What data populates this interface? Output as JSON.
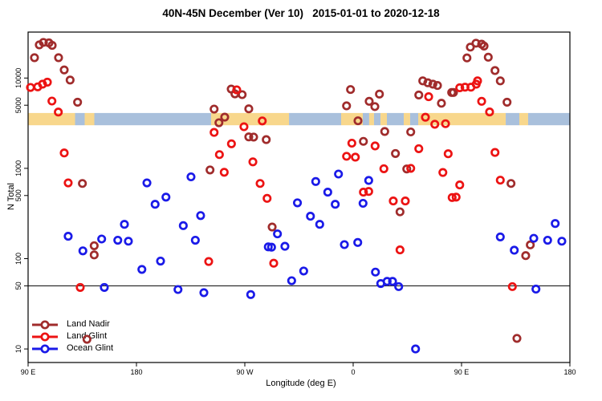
{
  "title": "40N-45N December (Ver 10)   2015-01-01 to 2020-12-18",
  "y_axis_label": "N Total",
  "x_axis_label": "Longitude (deg E)",
  "legend": {
    "items": [
      {
        "label": "Land Nadir",
        "color": "#A02C2C"
      },
      {
        "label": "Land Glint",
        "color": "#EC1313"
      },
      {
        "label": "Ocean Glint",
        "color": "#1A1AE8"
      }
    ]
  },
  "chart_data": {
    "type": "scatter",
    "title": "40N-45N December (Ver 10)   2015-01-01 to 2020-12-18",
    "xlabel": "Longitude (deg E)",
    "ylabel": "N Total",
    "x_axis": {
      "unit": "deg E, wrapping",
      "range_deg": [
        90,
        540
      ],
      "ticks": [
        {
          "lon": 90,
          "label": "90 E"
        },
        {
          "lon": 180,
          "label": "180"
        },
        {
          "lon": 270,
          "label": "90 W"
        },
        {
          "lon": 360,
          "label": "0"
        },
        {
          "lon": 450,
          "label": "90 E"
        },
        {
          "lon": 540,
          "label": "180"
        }
      ]
    },
    "y_axis": {
      "scale": "log10",
      "range": [
        7,
        32000
      ],
      "ticks": [
        {
          "v": 10,
          "label": "10"
        },
        {
          "v": 50,
          "label": "50"
        },
        {
          "v": 100,
          "label": "100"
        },
        {
          "v": 500,
          "label": "500"
        },
        {
          "v": 1000,
          "label": "1000"
        },
        {
          "v": 5000,
          "label": "5000"
        },
        {
          "v": 10000,
          "label": "10000"
        }
      ]
    },
    "grid": "off",
    "legend_position": "bottom-left",
    "reference_line_value": 50,
    "map_strip": {
      "description": "land/ocean mask band for 40N-45N latitude",
      "value_top": 4100,
      "value_bottom": 3000,
      "land_color": "#F8D78C",
      "ocean_color": "#A9C0DC",
      "segments": [
        {
          "from": 90,
          "to": 129,
          "type": "land"
        },
        {
          "from": 129,
          "to": 137,
          "type": "ocean"
        },
        {
          "from": 137,
          "to": 145,
          "type": "land"
        },
        {
          "from": 145,
          "to": 242,
          "type": "ocean"
        },
        {
          "from": 242,
          "to": 306.7,
          "type": "land"
        },
        {
          "from": 306.7,
          "to": 350,
          "type": "ocean"
        },
        {
          "from": 350,
          "to": 368,
          "type": "land"
        },
        {
          "from": 368,
          "to": 373.3,
          "type": "ocean"
        },
        {
          "from": 373.3,
          "to": 377.3,
          "type": "land"
        },
        {
          "from": 377.3,
          "to": 382.7,
          "type": "ocean"
        },
        {
          "from": 382.7,
          "to": 388,
          "type": "land"
        },
        {
          "from": 388,
          "to": 402,
          "type": "ocean"
        },
        {
          "from": 402,
          "to": 407.3,
          "type": "land"
        },
        {
          "from": 407.3,
          "to": 414,
          "type": "ocean"
        },
        {
          "from": 414,
          "to": 486.7,
          "type": "land"
        },
        {
          "from": 486.7,
          "to": 498,
          "type": "ocean"
        },
        {
          "from": 498,
          "to": 505.3,
          "type": "land"
        },
        {
          "from": 505.3,
          "to": 540,
          "type": "ocean"
        }
      ]
    },
    "series": [
      {
        "name": "Land Nadir",
        "color": "#A02C2C",
        "points": [
          [
            99.3,
            23300
          ],
          [
            102.7,
            24800
          ],
          [
            107.3,
            24500
          ],
          [
            110,
            23000
          ],
          [
            95.3,
            16800
          ],
          [
            115.3,
            16800
          ],
          [
            120,
            12300
          ],
          [
            124.9,
            9500
          ],
          [
            131.1,
            5400
          ],
          [
            135.1,
            680
          ],
          [
            144.9,
            139
          ],
          [
            144.9,
            110
          ],
          [
            138.9,
            12.8
          ],
          [
            241.1,
            960
          ],
          [
            244.5,
            4530
          ],
          [
            248.5,
            3200
          ],
          [
            253.3,
            3690
          ],
          [
            258.7,
            7550
          ],
          [
            261.8,
            6680
          ],
          [
            267.8,
            6550
          ],
          [
            273.3,
            4560
          ],
          [
            273.3,
            2230
          ],
          [
            277.3,
            2220
          ],
          [
            287.8,
            2080
          ],
          [
            292.7,
            224
          ],
          [
            354.5,
            4920
          ],
          [
            357.8,
            7460
          ],
          [
            364,
            3360
          ],
          [
            368.5,
            1990
          ],
          [
            373.3,
            5520
          ],
          [
            378,
            4830
          ],
          [
            381.8,
            6640
          ],
          [
            386.2,
            2560
          ],
          [
            395.1,
            1460
          ],
          [
            398.9,
            330
          ],
          [
            404.5,
            985
          ],
          [
            407.8,
            2530
          ],
          [
            414.5,
            6490
          ],
          [
            417.8,
            9300
          ],
          [
            422,
            8860
          ],
          [
            426.2,
            8550
          ],
          [
            430,
            8270
          ],
          [
            433.3,
            5260
          ],
          [
            441.8,
            6920
          ],
          [
            443.3,
            6920
          ],
          [
            454.5,
            16700
          ],
          [
            457.3,
            22000
          ],
          [
            462,
            24300
          ],
          [
            466.7,
            23700
          ],
          [
            468.7,
            22600
          ],
          [
            472.2,
            17000
          ],
          [
            477.8,
            12100
          ],
          [
            482.2,
            9300
          ],
          [
            487.8,
            5400
          ],
          [
            491.1,
            680
          ],
          [
            496,
            13.1
          ],
          [
            503.3,
            108
          ],
          [
            507.1,
            142
          ]
        ]
      },
      {
        "name": "Land Glint",
        "color": "#EC1313",
        "points": [
          [
            92,
            7870
          ],
          [
            98,
            7990
          ],
          [
            102,
            8550
          ],
          [
            106,
            9000
          ],
          [
            109.8,
            5560
          ],
          [
            115.1,
            4200
          ],
          [
            120,
            1480
          ],
          [
            123.3,
            690
          ],
          [
            133.3,
            48
          ],
          [
            240,
            93
          ],
          [
            244.5,
            2500
          ],
          [
            248.9,
            1420
          ],
          [
            252.9,
            905
          ],
          [
            258.9,
            1870
          ],
          [
            263.3,
            7400
          ],
          [
            269.3,
            2890
          ],
          [
            276.7,
            1180
          ],
          [
            282.7,
            680
          ],
          [
            284.5,
            3350
          ],
          [
            288.5,
            465
          ],
          [
            294,
            89
          ],
          [
            354.5,
            1360
          ],
          [
            358.9,
            1900
          ],
          [
            361.8,
            1330
          ],
          [
            368.5,
            545
          ],
          [
            372.9,
            555
          ],
          [
            378.2,
            1770
          ],
          [
            385.5,
            990
          ],
          [
            393.3,
            435
          ],
          [
            398.9,
            125
          ],
          [
            403.3,
            435
          ],
          [
            407.8,
            1000
          ],
          [
            414.5,
            1650
          ],
          [
            420,
            3680
          ],
          [
            422.7,
            6210
          ],
          [
            427.8,
            3080
          ],
          [
            434.5,
            900
          ],
          [
            436.7,
            3120
          ],
          [
            438.9,
            1450
          ],
          [
            442.2,
            475
          ],
          [
            445.5,
            480
          ],
          [
            448.5,
            7800
          ],
          [
            448.5,
            655
          ],
          [
            452.9,
            7920
          ],
          [
            457.8,
            7920
          ],
          [
            462.2,
            8550
          ],
          [
            463.3,
            9300
          ],
          [
            466.7,
            5520
          ],
          [
            473.3,
            4210
          ],
          [
            477.8,
            1500
          ],
          [
            482.2,
            740
          ],
          [
            492.2,
            49
          ]
        ]
      },
      {
        "name": "Ocean Glint",
        "color": "#1A1AE8",
        "points": [
          [
            123.3,
            177
          ],
          [
            135.5,
            122
          ],
          [
            151.1,
            165
          ],
          [
            153.3,
            48
          ],
          [
            164.5,
            160
          ],
          [
            170,
            240
          ],
          [
            173.3,
            156
          ],
          [
            184.5,
            76
          ],
          [
            188.7,
            690
          ],
          [
            195.5,
            400
          ],
          [
            200,
            94
          ],
          [
            204.5,
            480
          ],
          [
            214.5,
            45.5
          ],
          [
            218.9,
            232
          ],
          [
            225.3,
            805
          ],
          [
            228.9,
            160
          ],
          [
            233.3,
            300
          ],
          [
            236,
            42
          ],
          [
            274.9,
            40
          ],
          [
            289.5,
            135
          ],
          [
            292.2,
            134
          ],
          [
            297.1,
            188
          ],
          [
            303.3,
            137
          ],
          [
            308.9,
            57
          ],
          [
            313.7,
            415
          ],
          [
            318.9,
            73
          ],
          [
            324.5,
            295
          ],
          [
            328.9,
            715
          ],
          [
            332.2,
            240
          ],
          [
            338.9,
            545
          ],
          [
            345.1,
            400
          ],
          [
            347.8,
            865
          ],
          [
            352.7,
            143
          ],
          [
            363.8,
            151
          ],
          [
            368.2,
            410
          ],
          [
            372.9,
            735
          ],
          [
            378.5,
            71
          ],
          [
            382.9,
            53
          ],
          [
            388.2,
            56
          ],
          [
            392.7,
            56
          ],
          [
            397.8,
            49
          ],
          [
            411.8,
            10
          ],
          [
            482.2,
            174
          ],
          [
            493.8,
            124
          ],
          [
            510,
            168
          ],
          [
            511.8,
            46
          ],
          [
            521.5,
            160
          ],
          [
            527.8,
            245
          ],
          [
            533.3,
            156
          ]
        ]
      }
    ]
  }
}
